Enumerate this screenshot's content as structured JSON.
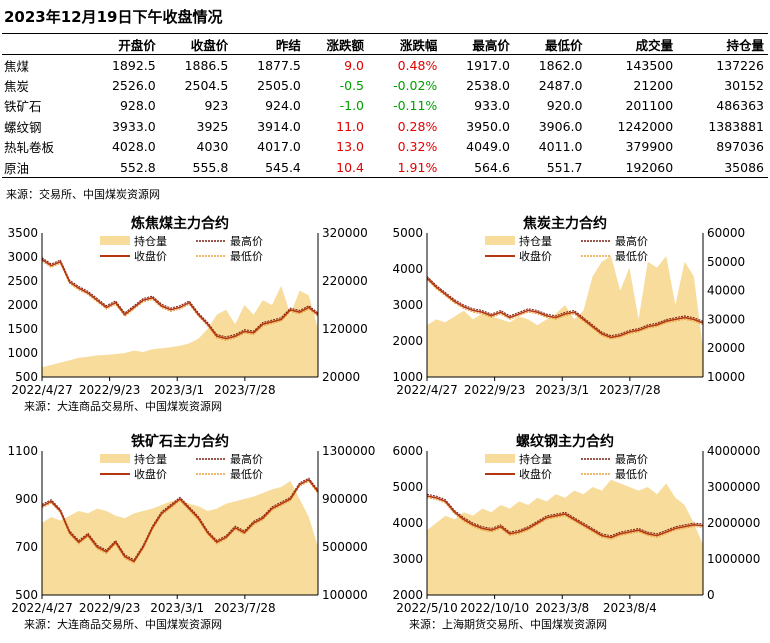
{
  "page_title": "2023年12月19日下午收盘情况",
  "table": {
    "headers": [
      "",
      "开盘价",
      "收盘价",
      "昨结",
      "涨跌额",
      "涨跌幅",
      "最高价",
      "最低价",
      "成交量",
      "持仓量"
    ],
    "rows": [
      {
        "name": "焦煤",
        "open": "1892.5",
        "close": "1886.5",
        "prev": "1877.5",
        "chg": "9.0",
        "pct": "0.48%",
        "high": "1917.0",
        "low": "1862.0",
        "vol": "143500",
        "oi": "137226",
        "dir": "up"
      },
      {
        "name": "焦炭",
        "open": "2526.0",
        "close": "2504.5",
        "prev": "2505.0",
        "chg": "-0.5",
        "pct": "-0.02%",
        "high": "2538.0",
        "low": "2487.0",
        "vol": "21200",
        "oi": "30152",
        "dir": "down"
      },
      {
        "name": "铁矿石",
        "open": "928.0",
        "close": "923",
        "prev": "924.0",
        "chg": "-1.0",
        "pct": "-0.11%",
        "high": "933.0",
        "low": "920.0",
        "vol": "201100",
        "oi": "486363",
        "dir": "down"
      },
      {
        "name": "螺纹钢",
        "open": "3933.0",
        "close": "3925",
        "prev": "3914.0",
        "chg": "11.0",
        "pct": "0.28%",
        "high": "3950.0",
        "low": "3906.0",
        "vol": "1242000",
        "oi": "1383881",
        "dir": "up"
      },
      {
        "name": "热轧卷板",
        "open": "4028.0",
        "close": "4030",
        "prev": "4017.0",
        "chg": "13.0",
        "pct": "0.32%",
        "high": "4049.0",
        "low": "4011.0",
        "vol": "379900",
        "oi": "897036",
        "dir": "up"
      },
      {
        "name": "原油",
        "open": "552.8",
        "close": "555.8",
        "prev": "545.4",
        "chg": "10.4",
        "pct": "1.91%",
        "high": "564.6",
        "low": "551.7",
        "vol": "192060",
        "oi": "35086",
        "dir": "up"
      }
    ],
    "source": "来源：交易所、中国煤炭资源网"
  },
  "colors": {
    "oi_fill": "#f7dc9c",
    "close_line": "#b5360f",
    "high_line": "#7a1f10",
    "low_line": "#e8a23c",
    "up": "#e00000",
    "down": "#00a000"
  },
  "legend": {
    "oi": "持仓量",
    "close": "收盘价",
    "high": "最高价",
    "low": "最低价"
  },
  "chart_data": [
    {
      "type": "line",
      "title": "炼焦煤主力合约",
      "ylim": [
        500,
        3500
      ],
      "yticks": [
        500,
        1000,
        1500,
        2000,
        2500,
        3000,
        3500
      ],
      "y2lim": [
        20000,
        320000
      ],
      "y2ticks": [
        20000,
        120000,
        220000,
        320000
      ],
      "xticks": [
        "2022/4/27",
        "2022/9/23",
        "2023/3/1",
        "2023/7/28"
      ],
      "close": [
        2950,
        2820,
        2900,
        2480,
        2350,
        2250,
        2100,
        1950,
        2050,
        1800,
        1950,
        2100,
        2150,
        1980,
        1900,
        1950,
        2050,
        1800,
        1600,
        1350,
        1300,
        1350,
        1450,
        1420,
        1600,
        1650,
        1700,
        1900,
        1850,
        1950,
        1800
      ],
      "oi": [
        40000,
        45000,
        50000,
        55000,
        60000,
        62000,
        65000,
        66000,
        68000,
        70000,
        75000,
        72000,
        78000,
        80000,
        82000,
        85000,
        90000,
        100000,
        120000,
        150000,
        160000,
        130000,
        170000,
        150000,
        180000,
        170000,
        210000,
        150000,
        200000,
        190000,
        120000
      ],
      "source": "来源：大连商品交易所、中国煤炭资源网"
    },
    {
      "type": "line",
      "title": "焦炭主力合约",
      "ylim": [
        1000,
        5000
      ],
      "yticks": [
        1000,
        2000,
        3000,
        4000,
        5000
      ],
      "y2lim": [
        10000,
        60000
      ],
      "y2ticks": [
        10000,
        20000,
        30000,
        40000,
        50000,
        60000
      ],
      "xticks": [
        "2022/4/27",
        "2022/9/23",
        "2023/3/1",
        "2023/7/28"
      ],
      "close": [
        3750,
        3500,
        3300,
        3100,
        2950,
        2850,
        2800,
        2700,
        2800,
        2650,
        2750,
        2850,
        2800,
        2700,
        2650,
        2750,
        2800,
        2600,
        2400,
        2200,
        2100,
        2150,
        2250,
        2300,
        2400,
        2450,
        2550,
        2600,
        2650,
        2600,
        2500
      ],
      "oi": [
        28000,
        30000,
        29000,
        31000,
        33000,
        30000,
        32000,
        31000,
        30000,
        29000,
        31000,
        30000,
        28000,
        30000,
        32000,
        35000,
        30000,
        33000,
        45000,
        50000,
        52000,
        40000,
        48000,
        30000,
        50000,
        48000,
        52000,
        35000,
        50000,
        45000,
        20000
      ],
      "source": ""
    },
    {
      "type": "line",
      "title": "铁矿石主力合约",
      "ylim": [
        500,
        1100
      ],
      "yticks": [
        500,
        700,
        900,
        1100
      ],
      "y2lim": [
        100000,
        1300000
      ],
      "y2ticks": [
        100000,
        500000,
        900000,
        1300000
      ],
      "xticks": [
        "2022/4/27",
        "2022/9/23",
        "2023/3/1",
        "2023/7/28"
      ],
      "close": [
        870,
        890,
        850,
        760,
        720,
        750,
        700,
        680,
        720,
        660,
        640,
        700,
        780,
        840,
        870,
        900,
        860,
        820,
        760,
        720,
        740,
        780,
        760,
        800,
        820,
        860,
        880,
        900,
        960,
        980,
        930
      ],
      "oi": [
        700000,
        750000,
        720000,
        760000,
        800000,
        780000,
        820000,
        800000,
        760000,
        740000,
        780000,
        800000,
        820000,
        850000,
        880000,
        900000,
        860000,
        840000,
        800000,
        820000,
        860000,
        880000,
        900000,
        920000,
        950000,
        980000,
        1000000,
        1050000,
        900000,
        750000,
        500000
      ],
      "source": "来源：大连商品交易所、中国煤炭资源网"
    },
    {
      "type": "line",
      "title": "螺纹钢主力合约",
      "ylim": [
        2000,
        6000
      ],
      "yticks": [
        2000,
        3000,
        4000,
        5000,
        6000
      ],
      "y2lim": [
        0,
        4000000
      ],
      "y2ticks": [
        0,
        1000000,
        2000000,
        3000000,
        4000000
      ],
      "xticks": [
        "2022/5/10",
        "2022/10/10",
        "2023/3/8",
        "2023/8/4"
      ],
      "close": [
        4750,
        4700,
        4600,
        4300,
        4100,
        3950,
        3850,
        3800,
        3900,
        3700,
        3750,
        3850,
        4000,
        4150,
        4200,
        4250,
        4100,
        3950,
        3800,
        3650,
        3600,
        3700,
        3750,
        3800,
        3700,
        3650,
        3750,
        3850,
        3900,
        3950,
        3925
      ],
      "oi": [
        1800000,
        2000000,
        2200000,
        2100000,
        2300000,
        2200000,
        2400000,
        2300000,
        2500000,
        2400000,
        2600000,
        2500000,
        2700000,
        2600000,
        2800000,
        2700000,
        2900000,
        2800000,
        3000000,
        2900000,
        3200000,
        3100000,
        3000000,
        2900000,
        3000000,
        2800000,
        3100000,
        2700000,
        2500000,
        2000000,
        1400000
      ],
      "source": "来源：上海期货交易所、中国煤炭资源网"
    }
  ]
}
